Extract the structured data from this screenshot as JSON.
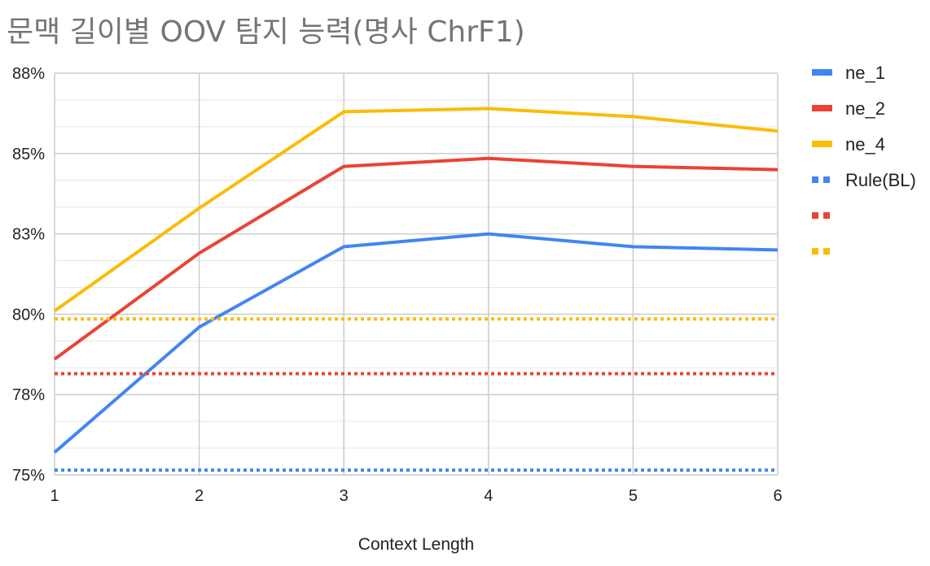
{
  "chart_data": {
    "type": "line",
    "title": "문맥 길이별 OOV 탐지 능력(명사 ChrF1)",
    "xlabel": "Context Length",
    "ylabel": "",
    "x": [
      1,
      2,
      3,
      4,
      5,
      6
    ],
    "x_tick_labels": [
      "1",
      "2",
      "3",
      "4",
      "5",
      "6"
    ],
    "ylim": [
      75,
      87.5
    ],
    "y_tick_labels": [
      "75%",
      "78%",
      "80%",
      "83%",
      "85%",
      "88%"
    ],
    "y_tick_values": [
      75,
      77.5,
      80,
      82.5,
      85,
      87.5
    ],
    "grid": true,
    "legend_position": "right",
    "series": [
      {
        "name": "ne_1",
        "color": "#4285f4",
        "style": "solid",
        "values": [
          75.7,
          79.6,
          82.1,
          82.5,
          82.1,
          82.0
        ]
      },
      {
        "name": "ne_2",
        "color": "#ea4335",
        "style": "solid",
        "values": [
          78.6,
          81.9,
          84.6,
          84.85,
          84.6,
          84.5
        ]
      },
      {
        "name": "ne_4",
        "color": "#fbbc04",
        "style": "solid",
        "values": [
          80.1,
          83.3,
          86.3,
          86.4,
          86.15,
          85.7
        ]
      },
      {
        "name": "Rule(BL)",
        "color": "#4285f4",
        "style": "dotted",
        "values": [
          75.15,
          75.15,
          75.15,
          75.15,
          75.15,
          75.15
        ]
      },
      {
        "name": "",
        "color": "#ea4335",
        "style": "dotted",
        "values": [
          78.15,
          78.15,
          78.15,
          78.15,
          78.15,
          78.15
        ]
      },
      {
        "name": "",
        "color": "#fbbc04",
        "style": "dotted",
        "values": [
          79.85,
          79.85,
          79.85,
          79.85,
          79.85,
          79.85
        ]
      }
    ]
  }
}
